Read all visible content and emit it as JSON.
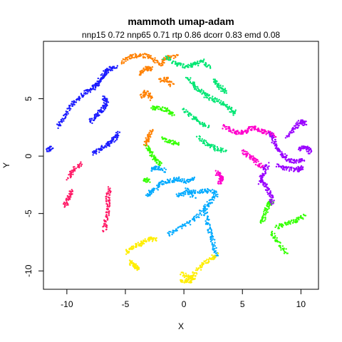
{
  "chart_data": {
    "type": "scatter",
    "title": "mammoth umap-adam",
    "subtitle": "nnp15 0.72 nnp65 0.71 rtp 0.86 dcorr 0.83 emd 0.08",
    "xlabel": "X",
    "ylabel": "Y",
    "xlim": [
      -12,
      11.5
    ],
    "ylim": [
      -11.6,
      10
    ],
    "x_ticks": [
      -10,
      -5,
      0,
      5,
      10
    ],
    "y_ticks": [
      -10,
      -5,
      0,
      5
    ],
    "x_tick_labels": [
      "-10",
      "-5",
      "0",
      "5",
      "10"
    ],
    "y_tick_labels": [
      "-10",
      "-5",
      "0",
      "5"
    ],
    "grid": false,
    "legend": "none",
    "marker": "small filled points, rainbow colored by original index",
    "series": [
      {
        "color": "#1a1aff",
        "curves": [
          [
            [
              -10.8,
              2.5
            ],
            [
              -10.2,
              3.5
            ],
            [
              -9.6,
              4.4
            ],
            [
              -9.0,
              5.0
            ],
            [
              -8.3,
              5.6
            ],
            [
              -7.7,
              6.0
            ],
            [
              -7.3,
              6.3
            ]
          ],
          [
            [
              -7.4,
              6.3
            ],
            [
              -7.0,
              6.8
            ],
            [
              -6.7,
              7.3
            ],
            [
              -6.4,
              7.6
            ],
            [
              -5.8,
              7.7
            ]
          ],
          [
            [
              -8.0,
              3.0
            ],
            [
              -7.5,
              3.6
            ],
            [
              -7.0,
              4.0
            ],
            [
              -6.6,
              4.6
            ],
            [
              -6.9,
              5.1
            ]
          ],
          [
            [
              -7.8,
              0.2
            ],
            [
              -7.1,
              0.7
            ],
            [
              -6.4,
              1.1
            ],
            [
              -5.9,
              1.5
            ],
            [
              -5.6,
              2.1
            ]
          ],
          [
            [
              -11.6,
              0.5
            ],
            [
              -11.3,
              0.8
            ]
          ]
        ]
      },
      {
        "color": "#ff1a66",
        "curves": [
          [
            [
              -9.9,
              -1.9
            ],
            [
              -9.4,
              -1.2
            ],
            [
              -8.8,
              -0.6
            ]
          ],
          [
            [
              -10.2,
              -4.4
            ],
            [
              -9.8,
              -3.6
            ],
            [
              -9.6,
              -3.0
            ]
          ],
          [
            [
              -6.8,
              -6.5
            ],
            [
              -6.6,
              -5.5
            ],
            [
              -6.5,
              -4.5
            ],
            [
              -6.5,
              -3.5
            ],
            [
              -6.3,
              -2.8
            ]
          ]
        ]
      },
      {
        "color": "#ff8000",
        "curves": [
          [
            [
              -5.4,
              8.2
            ],
            [
              -4.5,
              8.7
            ],
            [
              -3.6,
              8.8
            ],
            [
              -2.8,
              8.6
            ],
            [
              -2.0,
              8.0
            ],
            [
              -1.5,
              8.6
            ],
            [
              -0.6,
              8.7
            ]
          ],
          [
            [
              -3.8,
              7.1
            ],
            [
              -3.2,
              7.7
            ],
            [
              -2.7,
              7.6
            ]
          ],
          [
            [
              -2.0,
              6.6
            ],
            [
              -1.5,
              6.7
            ],
            [
              -1.0,
              6.1
            ]
          ],
          [
            [
              -3.6,
              5.2
            ],
            [
              -3.2,
              5.6
            ],
            [
              -2.8,
              5.0
            ]
          ],
          [
            [
              -3.3,
              1.0
            ],
            [
              -3.0,
              1.6
            ],
            [
              -2.8,
              2.2
            ]
          ]
        ]
      },
      {
        "color": "#00e673",
        "curves": [
          [
            [
              -1.6,
              8.6
            ],
            [
              -0.6,
              8.0
            ],
            [
              0.3,
              7.8
            ],
            [
              1.0,
              8.0
            ],
            [
              1.6,
              8.3
            ],
            [
              2.2,
              7.8
            ]
          ],
          [
            [
              0.3,
              6.8
            ],
            [
              1.0,
              6.0
            ],
            [
              1.7,
              5.4
            ],
            [
              2.4,
              5.0
            ],
            [
              3.2,
              4.6
            ],
            [
              3.9,
              4.2
            ],
            [
              4.4,
              3.7
            ]
          ],
          [
            [
              2.5,
              6.6
            ],
            [
              3.1,
              6.0
            ],
            [
              3.6,
              5.5
            ]
          ],
          [
            [
              0.0,
              4.0
            ],
            [
              0.6,
              3.5
            ],
            [
              1.2,
              3.0
            ],
            [
              2.1,
              2.6
            ]
          ],
          [
            [
              1.2,
              1.6
            ],
            [
              2.0,
              1.0
            ],
            [
              2.8,
              0.6
            ],
            [
              3.6,
              0.4
            ]
          ]
        ]
      },
      {
        "color": "#33ff00",
        "curves": [
          [
            [
              -2.8,
              4.2
            ],
            [
              -2.2,
              4.2
            ],
            [
              -1.5,
              4.0
            ],
            [
              -0.8,
              3.5
            ]
          ],
          [
            [
              -3.2,
              0.8
            ],
            [
              -2.8,
              0.3
            ],
            [
              -2.4,
              -0.3
            ],
            [
              -2.0,
              -0.8
            ]
          ],
          [
            [
              -1.8,
              1.5
            ],
            [
              -1.2,
              1.3
            ],
            [
              -0.5,
              1.0
            ]
          ],
          [
            [
              -3.4,
              -2.0
            ],
            [
              -3.0,
              -2.2
            ]
          ],
          [
            [
              6.7,
              -5.9
            ],
            [
              6.9,
              -5.0
            ],
            [
              7.2,
              -4.3
            ],
            [
              7.6,
              -3.9
            ]
          ],
          [
            [
              7.5,
              -6.6
            ],
            [
              8.0,
              -7.5
            ],
            [
              8.8,
              -8.5
            ]
          ],
          [
            [
              7.9,
              -6.2
            ],
            [
              8.8,
              -5.9
            ],
            [
              9.6,
              -5.6
            ],
            [
              10.3,
              -5.2
            ]
          ]
        ]
      },
      {
        "color": "#00aaff",
        "curves": [
          [
            [
              -3.2,
              -3.4
            ],
            [
              -2.6,
              -3.0
            ],
            [
              -2.0,
              -2.4
            ],
            [
              -1.3,
              -2.2
            ],
            [
              -0.6,
              -2.0
            ],
            [
              0.2,
              -2.2
            ],
            [
              1.0,
              -2.0
            ]
          ],
          [
            [
              -2.8,
              -1.2
            ],
            [
              -2.2,
              -1.0
            ],
            [
              -1.6,
              -1.3
            ]
          ],
          [
            [
              -0.6,
              -3.4
            ],
            [
              0.3,
              -3.2
            ],
            [
              1.1,
              -3.1
            ],
            [
              2.0,
              -3.0
            ],
            [
              2.8,
              -3.2
            ]
          ],
          [
            [
              -1.4,
              -6.8
            ],
            [
              -0.3,
              -6.2
            ],
            [
              0.8,
              -5.6
            ],
            [
              1.6,
              -4.8
            ],
            [
              2.2,
              -4.0
            ],
            [
              2.8,
              -3.3
            ]
          ],
          [
            [
              1.8,
              -4.6
            ],
            [
              2.0,
              -5.8
            ],
            [
              2.3,
              -6.8
            ],
            [
              2.6,
              -8.0
            ],
            [
              2.8,
              -8.8
            ]
          ],
          [
            [
              0.2,
              -2.8
            ],
            [
              0.9,
              -3.6
            ]
          ]
        ]
      },
      {
        "color": "#ffee00",
        "curves": [
          [
            [
              -5.0,
              -8.4
            ],
            [
              -4.2,
              -7.9
            ],
            [
              -3.6,
              -7.6
            ],
            [
              -3.0,
              -7.2
            ],
            [
              -2.3,
              -7.3
            ]
          ],
          [
            [
              -4.6,
              -9.2
            ],
            [
              -4.2,
              -9.6
            ],
            [
              -3.9,
              -9.8
            ]
          ],
          [
            [
              -0.2,
              -10.2
            ],
            [
              0.6,
              -10.6
            ],
            [
              1.3,
              -9.8
            ],
            [
              2.0,
              -9.2
            ],
            [
              2.8,
              -8.6
            ]
          ],
          [
            [
              -0.3,
              -10.8
            ],
            [
              0.5,
              -10.9
            ],
            [
              0.9,
              -10.5
            ]
          ]
        ]
      },
      {
        "color": "#ff00cc",
        "curves": [
          [
            [
              3.4,
              2.6
            ],
            [
              4.1,
              2.2
            ],
            [
              4.8,
              2.0
            ],
            [
              5.4,
              2.2
            ],
            [
              6.0,
              2.5
            ],
            [
              6.6,
              2.2
            ],
            [
              7.2,
              2.0
            ],
            [
              7.8,
              1.8
            ]
          ],
          [
            [
              5.0,
              0.4
            ],
            [
              5.6,
              0.0
            ],
            [
              6.2,
              -0.5
            ],
            [
              6.8,
              -1.0
            ]
          ],
          [
            [
              2.8,
              -1.4
            ],
            [
              3.2,
              -1.8
            ],
            [
              3.0,
              -2.4
            ]
          ]
        ]
      },
      {
        "color": "#9900ff",
        "curves": [
          [
            [
              7.4,
              2.0
            ],
            [
              7.8,
              1.0
            ],
            [
              8.3,
              0.3
            ],
            [
              8.9,
              -0.3
            ],
            [
              9.6,
              -0.5
            ],
            [
              10.2,
              -0.3
            ]
          ],
          [
            [
              8.8,
              1.6
            ],
            [
              9.5,
              2.5
            ],
            [
              10.0,
              3.0
            ],
            [
              10.4,
              2.8
            ]
          ],
          [
            [
              9.8,
              0.6
            ],
            [
              10.4,
              0.8
            ],
            [
              10.8,
              0.3
            ]
          ],
          [
            [
              6.6,
              -2.0
            ],
            [
              7.0,
              -2.6
            ],
            [
              7.4,
              -3.3
            ],
            [
              7.6,
              -4.1
            ]
          ],
          [
            [
              7.2,
              -0.7
            ],
            [
              6.8,
              -1.4
            ],
            [
              6.5,
              -2.3
            ]
          ],
          [
            [
              8.0,
              -0.8
            ],
            [
              8.8,
              -1.1
            ],
            [
              9.6,
              -1.2
            ],
            [
              10.2,
              -1.0
            ]
          ]
        ]
      }
    ]
  }
}
